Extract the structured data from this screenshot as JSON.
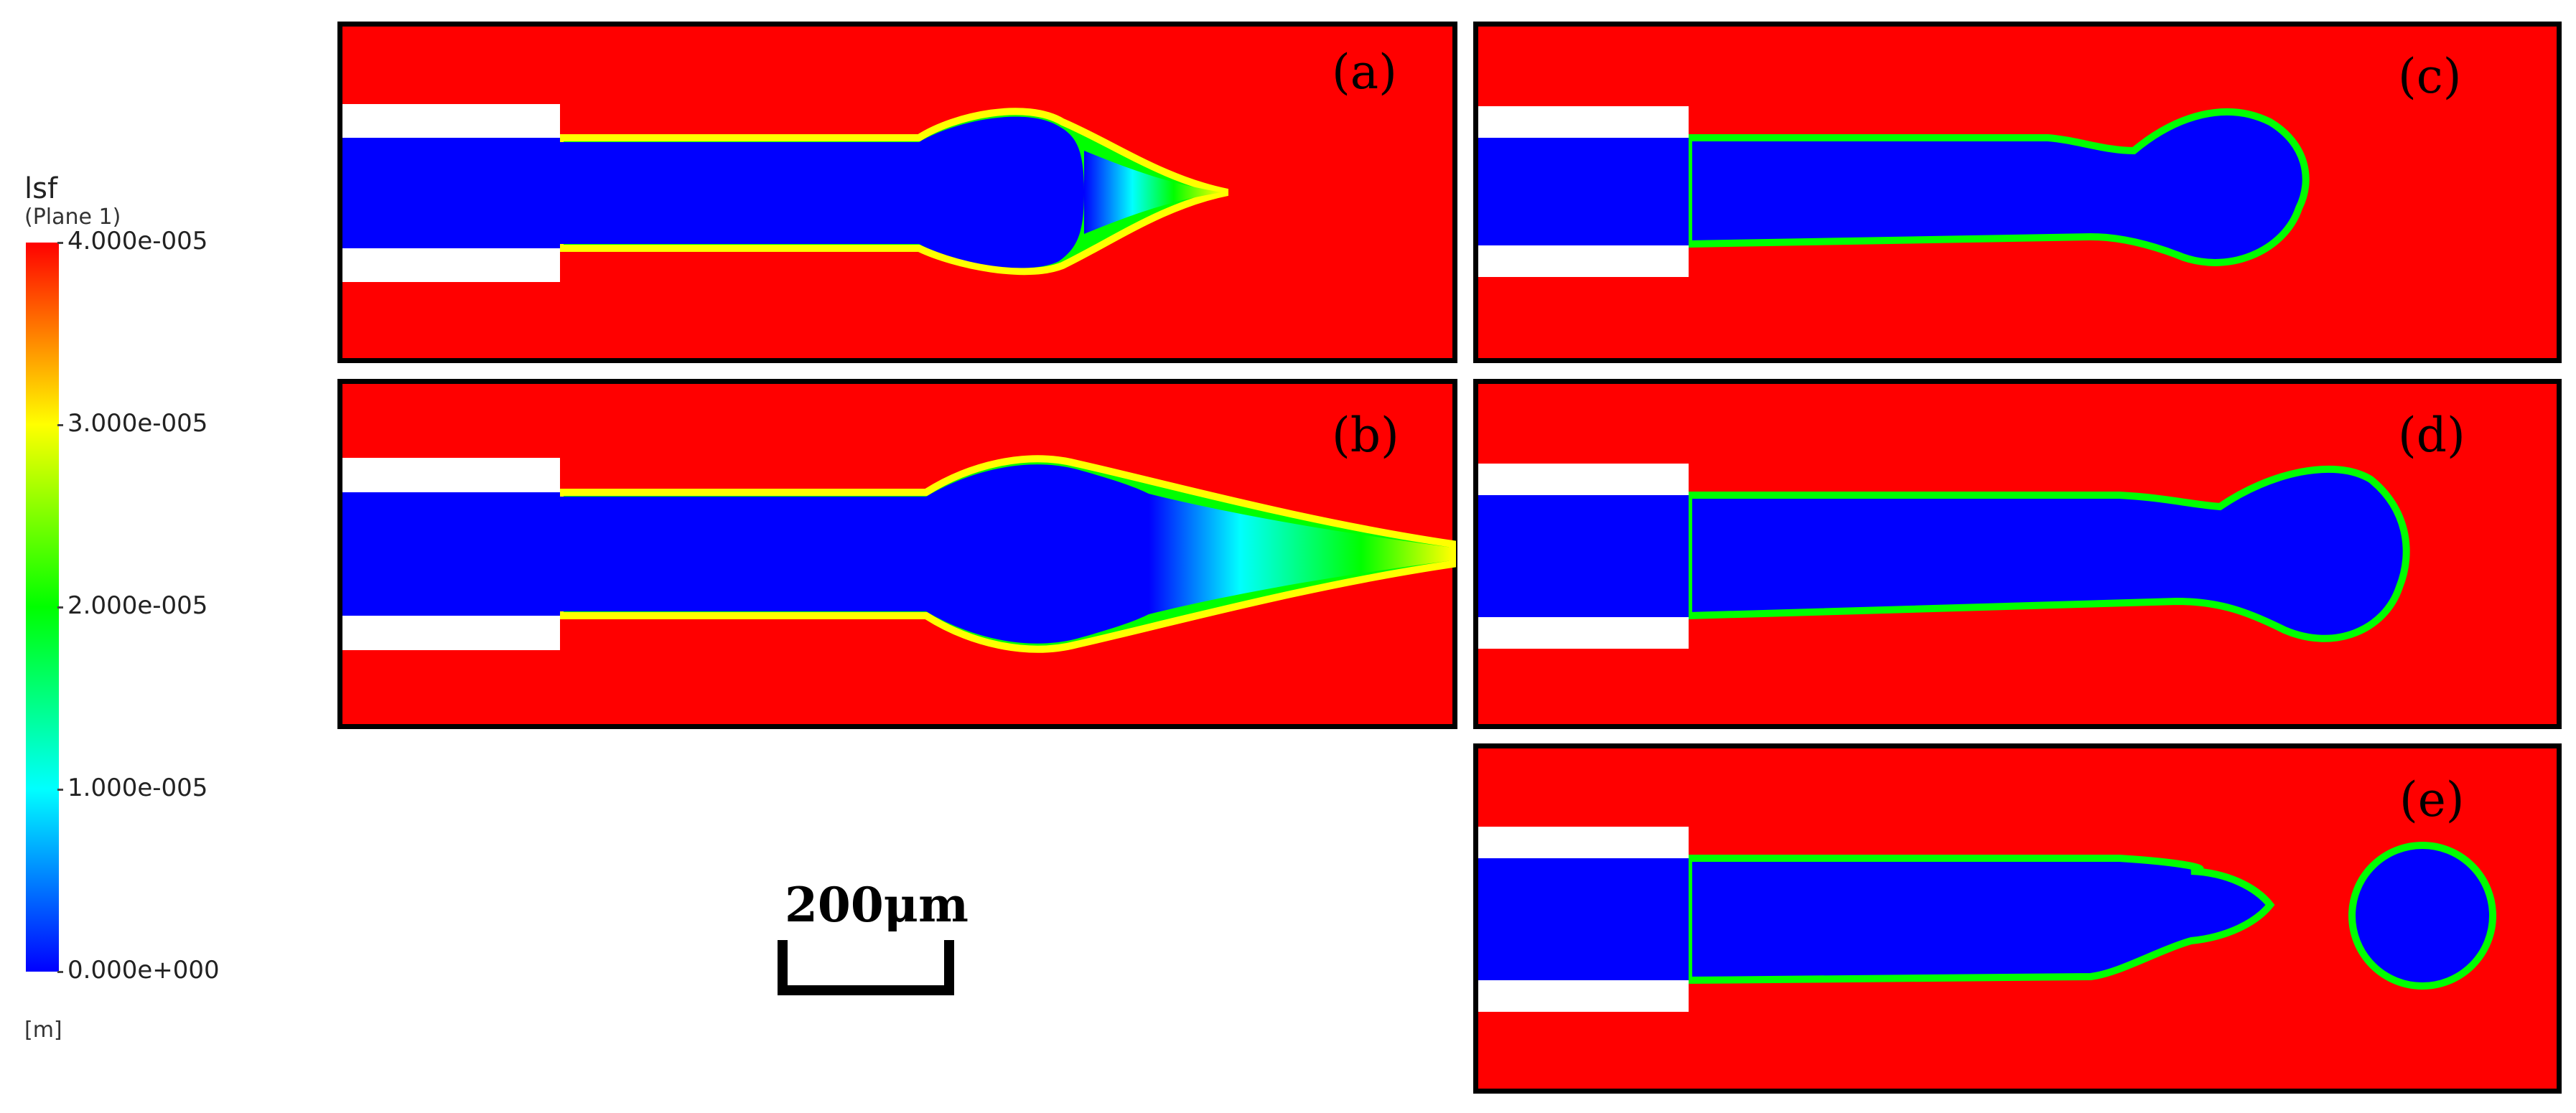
{
  "colorbar": {
    "title": "lsf",
    "subtitle": "(Plane  1)",
    "unit": "[m]",
    "ticks": [
      "4.000e-005",
      "3.000e-005",
      "2.000e-005",
      "1.000e-005",
      "0.000e+000"
    ],
    "colors": [
      "#ff0000",
      "#ffff00",
      "#00ff00",
      "#00ffff",
      "#0000ff"
    ]
  },
  "panels": [
    {
      "label": "(a)"
    },
    {
      "label": "(b)"
    },
    {
      "label": "(c)"
    },
    {
      "label": "(d)"
    },
    {
      "label": "(e)"
    }
  ],
  "scale_bar": {
    "label": "200μm"
  },
  "colors": {
    "background": "#ff0000",
    "fluid": "#0000ff",
    "nozzle": "#ffffff"
  }
}
